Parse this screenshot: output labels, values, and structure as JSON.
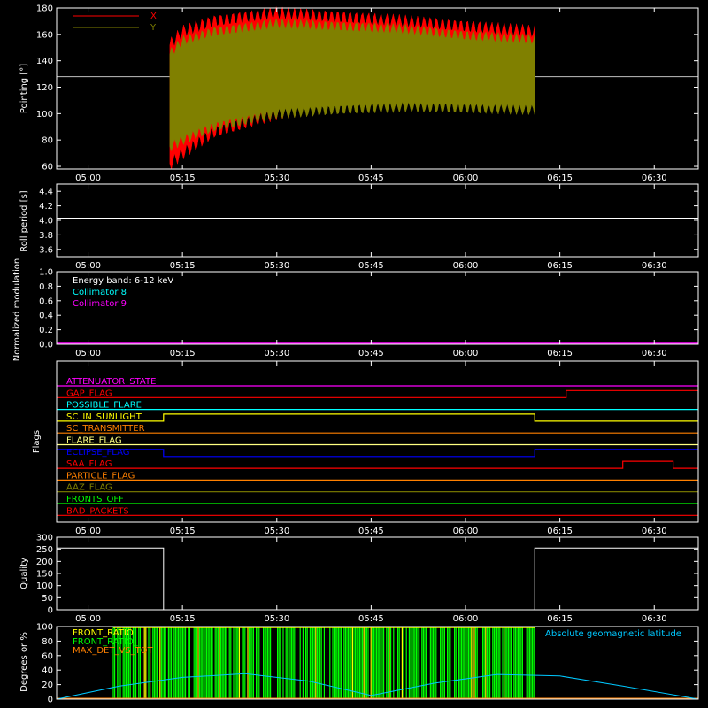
{
  "colors": {
    "background": "#000000",
    "axis": "#ffffff",
    "x_series": "#ff0000",
    "y_series": "#808000",
    "collimator8": "#00ffff",
    "collimator9": "#ff00ff",
    "front_ratio": "#ffff00",
    "front_ratio_green": "#00ff00",
    "max_det": "#ff8000",
    "geomag": "#00c8ff"
  },
  "chart_data": [
    {
      "type": "area",
      "panel": "pointing",
      "ylabel": "Pointing [°]",
      "xlim": [
        "04:55",
        "06:37"
      ],
      "ylim": [
        58,
        180
      ],
      "yticks": [
        60,
        80,
        100,
        120,
        140,
        160,
        180
      ],
      "xticks": [
        "05:00",
        "05:15",
        "05:30",
        "05:45",
        "06:00",
        "06:15",
        "06:30"
      ],
      "reference_line": 128,
      "series": [
        {
          "name": "X",
          "t": [
            "05:13",
            "05:15",
            "05:20",
            "05:30",
            "05:40",
            "05:50",
            "06:00",
            "06:11"
          ],
          "min": [
            62,
            70,
            86,
            100,
            108,
            112,
            115,
            116
          ],
          "max": [
            152,
            162,
            170,
            176,
            173,
            170,
            166,
            162
          ]
        },
        {
          "name": "Y",
          "t": [
            "05:13",
            "05:15",
            "05:20",
            "05:30",
            "05:40",
            "05:50",
            "06:00",
            "06:11"
          ],
          "min": [
            75,
            80,
            90,
            100,
            103,
            105,
            104,
            103
          ],
          "max": [
            145,
            155,
            162,
            168,
            166,
            164,
            159,
            156
          ]
        }
      ]
    },
    {
      "type": "line",
      "panel": "roll",
      "ylabel": "Roll period [s]",
      "xlim": [
        "04:55",
        "06:37"
      ],
      "ylim": [
        3.5,
        4.5
      ],
      "yticks": [
        3.6,
        3.8,
        4.0,
        4.2,
        4.4
      ],
      "xticks": [
        "05:00",
        "05:15",
        "05:30",
        "05:45",
        "06:00",
        "06:15",
        "06:30"
      ],
      "series": [
        {
          "t": [
            "04:55",
            "06:37"
          ],
          "values": [
            4.03,
            4.03
          ]
        }
      ]
    },
    {
      "type": "line",
      "panel": "modulation",
      "ylabel": "Normalized modulation",
      "xlim": [
        "04:55",
        "06:37"
      ],
      "ylim": [
        0,
        1
      ],
      "yticks": [
        0.0,
        0.2,
        0.4,
        0.6,
        0.8,
        1.0
      ],
      "xticks": [
        "05:00",
        "05:15",
        "05:30",
        "05:45",
        "06:00",
        "06:15",
        "06:30"
      ],
      "annotation": "Energy band: 6-12 keV",
      "series": [
        {
          "name": "Collimator 8",
          "values": [
            0.0,
            0.0
          ]
        },
        {
          "name": "Collimator 9",
          "values": [
            0.0,
            0.0
          ]
        }
      ]
    },
    {
      "type": "line",
      "panel": "flags",
      "ylabel": "Flags",
      "xlim": [
        "04:55",
        "06:37"
      ],
      "xticks": [
        "05:00",
        "05:15",
        "05:30",
        "05:45",
        "06:00",
        "06:15",
        "06:30"
      ],
      "flags": [
        {
          "name": "ATTENUATOR_STATE",
          "color": "#ff00ff",
          "segments": [
            [
              "04:55",
              "06:37",
              0
            ]
          ]
        },
        {
          "name": "GAP_FLAG",
          "color": "#ff0000",
          "segments": [
            [
              "04:55",
              "06:16",
              0
            ],
            [
              "06:16",
              "06:37",
              1
            ]
          ]
        },
        {
          "name": "POSSIBLE_FLARE",
          "color": "#00ffff",
          "segments": [
            [
              "04:55",
              "06:37",
              0
            ]
          ]
        },
        {
          "name": "SC_IN_SUNLIGHT",
          "color": "#ffff00",
          "segments": [
            [
              "04:55",
              "05:12",
              0
            ],
            [
              "05:12",
              "06:11",
              1
            ],
            [
              "06:11",
              "06:37",
              0
            ]
          ]
        },
        {
          "name": "SC_TRANSMITTER",
          "color": "#ff8000",
          "segments": [
            [
              "04:55",
              "06:37",
              0
            ]
          ]
        },
        {
          "name": "FLARE_FLAG",
          "color": "#ffff80",
          "segments": [
            [
              "04:55",
              "06:37",
              0
            ]
          ]
        },
        {
          "name": "ECLIPSE_FLAG",
          "color": "#0000ff",
          "segments": [
            [
              "04:55",
              "05:12",
              1
            ],
            [
              "05:12",
              "06:11",
              0
            ],
            [
              "06:11",
              "06:37",
              1
            ]
          ]
        },
        {
          "name": "SAA_FLAG",
          "color": "#ff0000",
          "segments": [
            [
              "04:55",
              "06:25",
              0
            ],
            [
              "06:25",
              "06:33",
              1
            ],
            [
              "06:33",
              "06:37",
              0
            ]
          ]
        },
        {
          "name": "PARTICLE_FLAG",
          "color": "#ff8000",
          "segments": [
            [
              "04:55",
              "06:37",
              0
            ]
          ]
        },
        {
          "name": "AAZ_FLAG",
          "color": "#808000",
          "segments": [
            [
              "04:55",
              "06:37",
              0
            ]
          ]
        },
        {
          "name": "FRONTS_OFF",
          "color": "#00ff00",
          "segments": [
            [
              "04:55",
              "06:37",
              0
            ]
          ]
        },
        {
          "name": "BAD_PACKETS",
          "color": "#ff0000",
          "segments": [
            [
              "04:55",
              "06:37",
              0
            ]
          ]
        }
      ]
    },
    {
      "type": "line",
      "panel": "quality",
      "ylabel": "Quality",
      "xlim": [
        "04:55",
        "06:37"
      ],
      "ylim": [
        0,
        300
      ],
      "yticks": [
        0,
        50,
        100,
        150,
        200,
        250,
        300
      ],
      "xticks": [
        "05:00",
        "05:15",
        "05:30",
        "05:45",
        "06:00",
        "06:15",
        "06:30"
      ],
      "series": [
        {
          "t": [
            "04:55",
            "05:12",
            "05:12",
            "06:11",
            "06:11",
            "06:37"
          ],
          "values": [
            255,
            255,
            0,
            0,
            255,
            255
          ]
        }
      ]
    },
    {
      "type": "bar",
      "panel": "ratios",
      "ylabel": "Degrees or %",
      "xlim": [
        "04:55",
        "06:37"
      ],
      "ylim": [
        0,
        100
      ],
      "yticks": [
        0,
        20,
        40,
        60,
        80,
        100
      ],
      "series": [
        {
          "name": "FRONT_RATIO",
          "t": [
            "05:04",
            "06:11"
          ],
          "values": [
            100,
            100
          ]
        },
        {
          "name": "FRONT_RATIO_",
          "t": [
            "05:04",
            "06:11"
          ],
          "values": [
            100,
            100
          ]
        },
        {
          "name": "MAX_DET_VS_TOT",
          "values": [
            0,
            0
          ]
        },
        {
          "name": "Absolute geomagnetic latitude",
          "t": [
            "04:55",
            "05:05",
            "05:15",
            "05:25",
            "05:35",
            "05:45",
            "05:55",
            "06:05",
            "06:15",
            "06:25",
            "06:37"
          ],
          "values": [
            0,
            18,
            30,
            35,
            25,
            5,
            22,
            34,
            32,
            18,
            0
          ]
        }
      ]
    }
  ]
}
